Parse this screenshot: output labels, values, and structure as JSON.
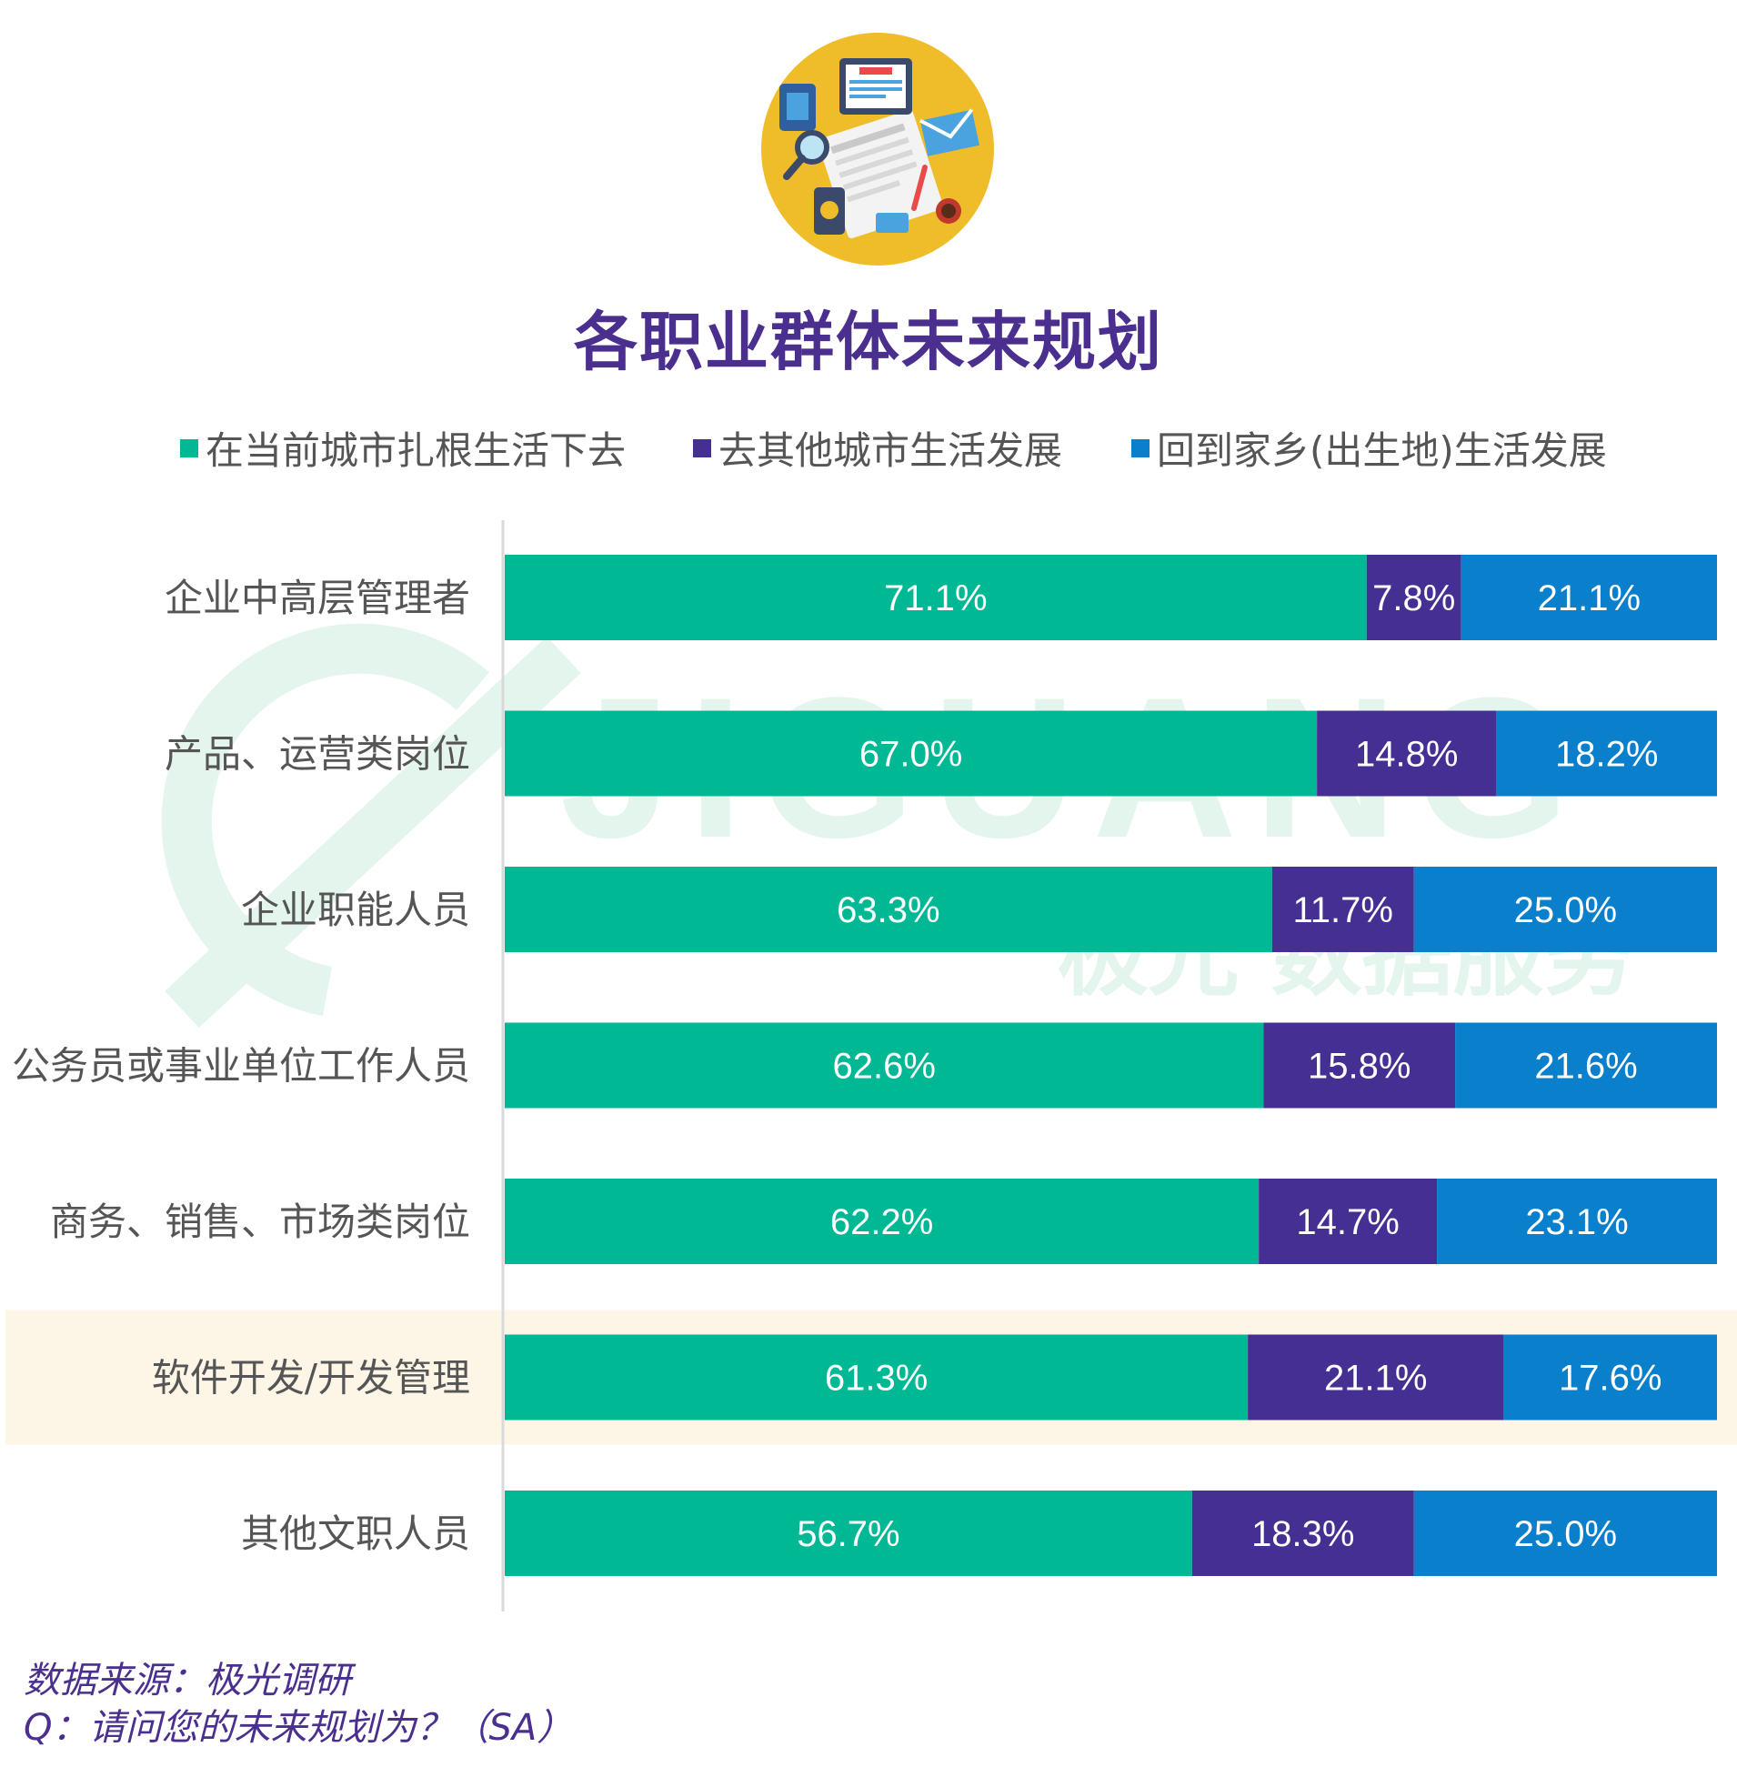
{
  "title": "各职业群体未来规划",
  "colors": {
    "title": "#4a2f8f",
    "stay": "#00b894",
    "other_city": "#462f92",
    "hometown": "#0a7fcc",
    "highlight": "#fdf6e7",
    "watermark": "#e3f5ec"
  },
  "watermark": {
    "line1": "JIGUANG",
    "line2": "极光 数据服务"
  },
  "chart_data": {
    "type": "bar",
    "orientation": "horizontal",
    "stacked": true,
    "title": "各职业群体未来规划",
    "xlabel": "",
    "ylabel": "",
    "xlim": [
      0,
      100
    ],
    "unit": "%",
    "legend_position": "top",
    "categories": [
      "企业中高层管理者",
      "产品、运营类岗位",
      "企业职能人员",
      "公务员或事业单位工作人员",
      "商务、销售、市场类岗位",
      "软件开发/开发管理",
      "其他文职人员"
    ],
    "highlighted_category": "软件开发/开发管理",
    "series": [
      {
        "name": "在当前城市扎根生活下去",
        "color": "#00b894",
        "values": [
          71.1,
          67.0,
          63.3,
          62.6,
          62.2,
          61.3,
          56.7
        ]
      },
      {
        "name": "去其他城市生活发展",
        "color": "#462f92",
        "values": [
          7.8,
          14.8,
          11.7,
          15.8,
          14.7,
          21.1,
          18.3
        ]
      },
      {
        "name": "回到家乡(出生地)生活发展",
        "color": "#0a7fcc",
        "values": [
          21.1,
          18.2,
          25.0,
          21.6,
          23.1,
          17.6,
          25.0
        ]
      }
    ]
  },
  "footer": {
    "source": "数据来源：极光调研",
    "question": "Q：请问您的未来规划为？（SA）"
  }
}
